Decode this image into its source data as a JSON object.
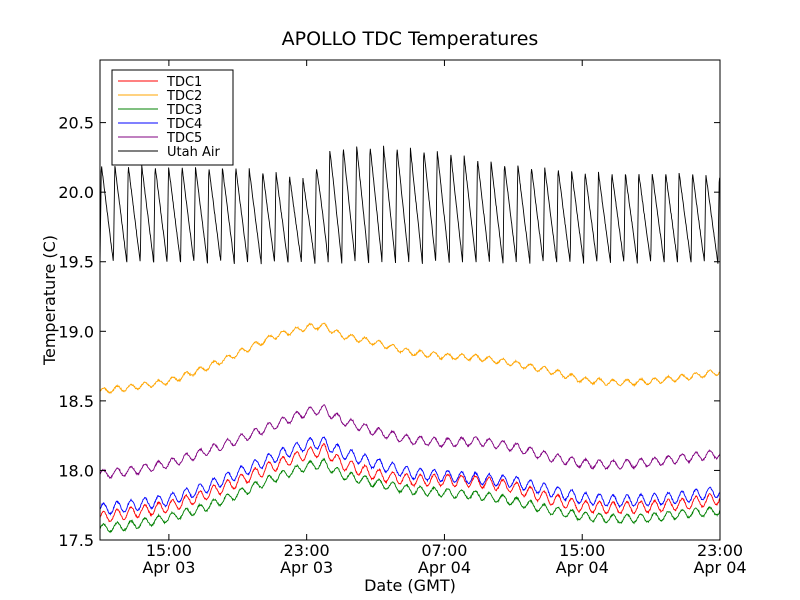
{
  "chart_data": {
    "type": "line",
    "title": "APOLLO TDC Temperatures",
    "xlabel": "Date (GMT)",
    "ylabel": "Temperature (C)",
    "x_unit": "hours since Apr 03 11:00 GMT",
    "xlim": [
      0,
      36
    ],
    "ylim": [
      17.5,
      20.95
    ],
    "grid": false,
    "legend_position": "top-left",
    "x_ticks": [
      {
        "x": 4,
        "time": "15:00",
        "date": "Apr 03"
      },
      {
        "x": 12,
        "time": "23:00",
        "date": "Apr 03"
      },
      {
        "x": 20,
        "time": "07:00",
        "date": "Apr 04"
      },
      {
        "x": 28,
        "time": "15:00",
        "date": "Apr 04"
      },
      {
        "x": 36,
        "time": "23:00",
        "date": "Apr 04"
      }
    ],
    "y_ticks": [
      {
        "value": 17.5,
        "label": "17.5"
      },
      {
        "value": 18.0,
        "label": "18.0"
      },
      {
        "value": 18.5,
        "label": "18.5"
      },
      {
        "value": 19.0,
        "label": "19.0"
      },
      {
        "value": 19.5,
        "label": "19.5"
      },
      {
        "value": 20.0,
        "label": "20.0"
      },
      {
        "value": 20.5,
        "label": "20.5"
      }
    ],
    "series": [
      {
        "name": "TDC1",
        "color": "#ff0000",
        "ripple": 0.04,
        "period": 0.8,
        "x": [
          0,
          2,
          4,
          6,
          8,
          10,
          12,
          13,
          14,
          16,
          18,
          20,
          22,
          24,
          26,
          28,
          30,
          32,
          34,
          36
        ],
        "y": [
          17.66,
          17.7,
          17.74,
          17.82,
          17.92,
          18.03,
          18.12,
          18.15,
          18.05,
          17.97,
          17.93,
          17.93,
          17.92,
          17.88,
          17.8,
          17.74,
          17.73,
          17.74,
          17.76,
          17.8
        ]
      },
      {
        "name": "TDC2",
        "color": "#ffa500",
        "ripple": 0.02,
        "period": 0.8,
        "x": [
          0,
          2,
          4,
          6,
          8,
          10,
          12,
          13,
          14,
          16,
          18,
          20,
          22,
          24,
          26,
          28,
          30,
          32,
          34,
          36
        ],
        "y": [
          18.57,
          18.6,
          18.64,
          18.73,
          18.84,
          18.96,
          19.03,
          19.04,
          18.97,
          18.92,
          18.85,
          18.82,
          18.81,
          18.77,
          18.72,
          18.65,
          18.63,
          18.64,
          18.67,
          18.71
        ]
      },
      {
        "name": "TDC3",
        "color": "#008000",
        "ripple": 0.03,
        "period": 0.8,
        "x": [
          0,
          2,
          4,
          6,
          8,
          10,
          12,
          13,
          14,
          16,
          18,
          20,
          22,
          24,
          26,
          28,
          30,
          32,
          34,
          36
        ],
        "y": [
          17.58,
          17.61,
          17.66,
          17.73,
          17.83,
          17.94,
          18.03,
          18.05,
          17.97,
          17.91,
          17.86,
          17.84,
          17.82,
          17.78,
          17.72,
          17.67,
          17.65,
          17.66,
          17.69,
          17.71
        ]
      },
      {
        "name": "TDC4",
        "color": "#0000ff",
        "ripple": 0.04,
        "period": 0.8,
        "x": [
          0,
          2,
          4,
          6,
          8,
          10,
          12,
          13,
          14,
          16,
          18,
          20,
          22,
          24,
          26,
          28,
          30,
          32,
          34,
          36
        ],
        "y": [
          17.72,
          17.75,
          17.79,
          17.87,
          17.98,
          18.09,
          18.19,
          18.2,
          18.13,
          18.05,
          17.98,
          17.96,
          17.94,
          17.92,
          17.86,
          17.8,
          17.78,
          17.79,
          17.81,
          17.85
        ]
      },
      {
        "name": "TDC5",
        "color": "#800080",
        "ripple": 0.03,
        "period": 0.8,
        "x": [
          0,
          2,
          4,
          6,
          8,
          10,
          12,
          13,
          14,
          16,
          18,
          20,
          22,
          24,
          26,
          28,
          30,
          32,
          34,
          36
        ],
        "y": [
          17.97,
          18.0,
          18.05,
          18.13,
          18.22,
          18.32,
          18.42,
          18.44,
          18.36,
          18.28,
          18.22,
          18.2,
          18.21,
          18.17,
          18.1,
          18.05,
          18.04,
          18.06,
          18.09,
          18.12
        ]
      },
      {
        "name": "Utah Air",
        "color": "#000000",
        "min_temp": 19.49,
        "cycle_hours": 0.78,
        "x": [
          0,
          8,
          10,
          12,
          13.5,
          16,
          18,
          20,
          22,
          24,
          26,
          28,
          30,
          32,
          34,
          36
        ],
        "y": [
          20.2,
          20.18,
          20.15,
          20.1,
          20.33,
          20.34,
          20.32,
          20.3,
          20.24,
          20.2,
          20.18,
          20.15,
          20.14,
          20.14,
          20.15,
          20.12
        ]
      }
    ]
  }
}
